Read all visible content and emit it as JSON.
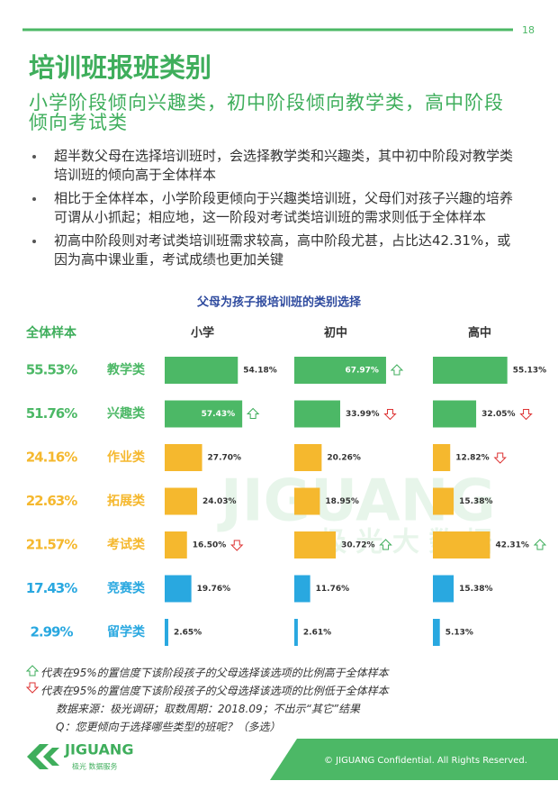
{
  "page_number": "18",
  "header": {
    "title": "培训班报班类别",
    "subtitle": "小学阶段倾向兴趣类，初中阶段倾向教学类，高中阶段倾向考试类"
  },
  "bullets": [
    "超半数父母在选择培训班时，会选择教学类和兴趣类，其中初中阶段对教学类培训班的倾向高于全体样本",
    "相比于全体样本，小学阶段更倾向于兴趣类培训班，父母们对孩子兴趣的培养可谓从小抓起；相应地，这一阶段对考试类培训班的需求则低于全体样本",
    "初高中阶段则对考试类培训班需求较高，高中阶段尤甚，占比达42.31%，或因为高中课业重，考试成绩也更加关键"
  ],
  "chart_data": {
    "type": "bar",
    "title": "父母为孩子报培训班的类别选择",
    "categories": [
      "教学类",
      "兴趣类",
      "作业类",
      "拓展类",
      "考试类",
      "竞赛类",
      "留学类"
    ],
    "category_colors": [
      "#4cb866",
      "#4cb866",
      "#f5b82e",
      "#f5b82e",
      "#f5b82e",
      "#29a8e0",
      "#29a8e0"
    ],
    "overall": {
      "name": "全体样本",
      "values": [
        55.53,
        51.76,
        24.16,
        22.63,
        21.57,
        17.43,
        2.99
      ],
      "value_labels": [
        "55.53%",
        "51.76%",
        "24.16%",
        "22.63%",
        "21.57%",
        "17.43%",
        "2.99%"
      ]
    },
    "series": [
      {
        "name": "小学",
        "values": [
          54.18,
          57.43,
          27.7,
          24.03,
          16.5,
          19.76,
          2.65
        ],
        "value_labels": [
          "54.18%",
          "57.43%",
          "27.70%",
          "24.03%",
          "16.50%",
          "19.76%",
          "2.65%"
        ],
        "significance": [
          null,
          "up",
          null,
          null,
          "down",
          null,
          null
        ]
      },
      {
        "name": "初中",
        "values": [
          67.97,
          33.99,
          20.26,
          18.95,
          30.72,
          11.76,
          2.61
        ],
        "value_labels": [
          "67.97%",
          "33.99%",
          "20.26%",
          "18.95%",
          "30.72%",
          "11.76%",
          "2.61%"
        ],
        "significance": [
          "up",
          "down",
          null,
          null,
          "up",
          null,
          null
        ]
      },
      {
        "name": "高中",
        "values": [
          55.13,
          32.05,
          12.82,
          15.38,
          42.31,
          15.38,
          5.13
        ],
        "value_labels": [
          "55.13%",
          "32.05%",
          "12.82%",
          "15.38%",
          "42.31%",
          "15.38%",
          "5.13%"
        ],
        "significance": [
          null,
          "down",
          "down",
          null,
          "up",
          null,
          null
        ]
      }
    ]
  },
  "notes": {
    "up": "代表在95%的置信度下该阶段孩子的父母选择该选项的比例高于全体样本",
    "down": "代表在95%的置信度下该阶段孩子的父母选择该选项的比例低于全体样本",
    "source": "数据来源：极光调研；取数周期：2018.09；不出示“其它”结果",
    "question": "Q：您更倾向于选择哪些类型的班呢？（多选）"
  },
  "watermark": {
    "brand": "JIGUANG",
    "name": "极 光 大 数 据"
  },
  "footer": {
    "copyright": "© JIGUANG Confidential. All Rights Reserved.",
    "logo": "JIGUANG",
    "logo_sub": "极光 数据服务"
  }
}
